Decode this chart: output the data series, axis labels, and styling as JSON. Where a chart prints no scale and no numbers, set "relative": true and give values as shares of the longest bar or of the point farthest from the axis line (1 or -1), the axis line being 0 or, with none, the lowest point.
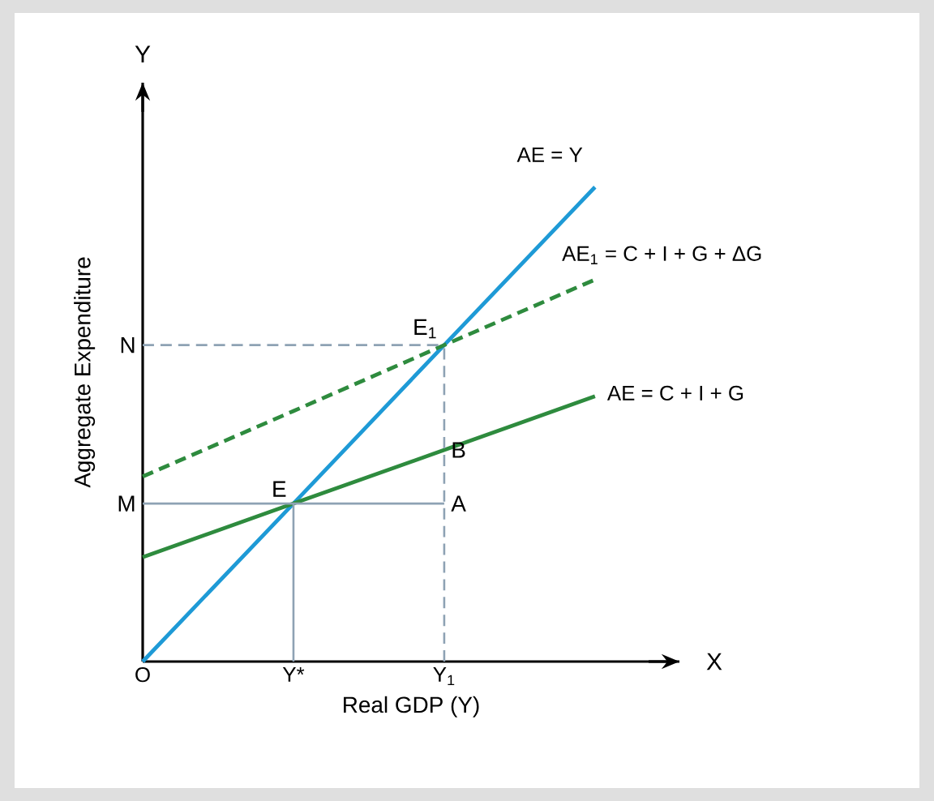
{
  "chart_data": {
    "type": "line",
    "relative": true,
    "xlabel": "Real GDP (Y)",
    "ylabel": "Aggregate Expenditure",
    "categories": [
      "O",
      "Y*",
      "Y$_{1}$",
      null
    ],
    "series": [
      {
        "name": "AE = Y",
        "color": "#1e9ad6",
        "values": [
          0,
          0.333,
          0.667,
          1
        ],
        "line_style": "solid"
      },
      {
        "name": "AE$_{1}$ = C + I + G + ΔG",
        "color": "#2e8b3e",
        "values": [
          0.39,
          0.528,
          0.667,
          0.805
        ],
        "line_style": "dashed"
      },
      {
        "name": "AE = C + I + G",
        "color": "#2e8b3e",
        "values": [
          0.22,
          0.333,
          0.446,
          0.559
        ],
        "line_style": "solid"
      },
      {
        "color": "#8ea2b4",
        "x": [
          "O",
          "Y$_{1}$"
        ],
        "values": [
          0.667,
          0.667
        ],
        "line_style": "dashed"
      },
      {
        "color": "#8ea2b4",
        "x": [
          "Y$_{1}$",
          "Y$_{1}$"
        ],
        "values": [
          0,
          0.667
        ],
        "line_style": "dashed"
      },
      {
        "color": "#8ea2b4",
        "x": [
          "O",
          "Y$_{1}$"
        ],
        "values": [
          0.333,
          0.333
        ],
        "line_style": "solid"
      },
      {
        "color": "#8ea2b4",
        "x": [
          "Y*",
          "Y*"
        ],
        "values": [
          0,
          0.333
        ],
        "line_style": "solid"
      }
    ],
    "annotations": [
      "Y",
      "X",
      {
        "text": "N",
        "x": "O",
        "y": 0.667
      },
      {
        "text": "M",
        "x": "O",
        "y": 0.333
      },
      {
        "text": "E",
        "x": "Y*",
        "y": 0.333
      },
      {
        "text": "E$_{1}$",
        "x": "Y$_{1}$",
        "y": 0.667
      },
      {
        "text": "B",
        "x": "Y$_{1}$",
        "y": 0.446
      },
      {
        "text": "A",
        "x": "Y$_{1}$",
        "y": 0.333
      }
    ],
    "marker": "none",
    "grid": false
  }
}
